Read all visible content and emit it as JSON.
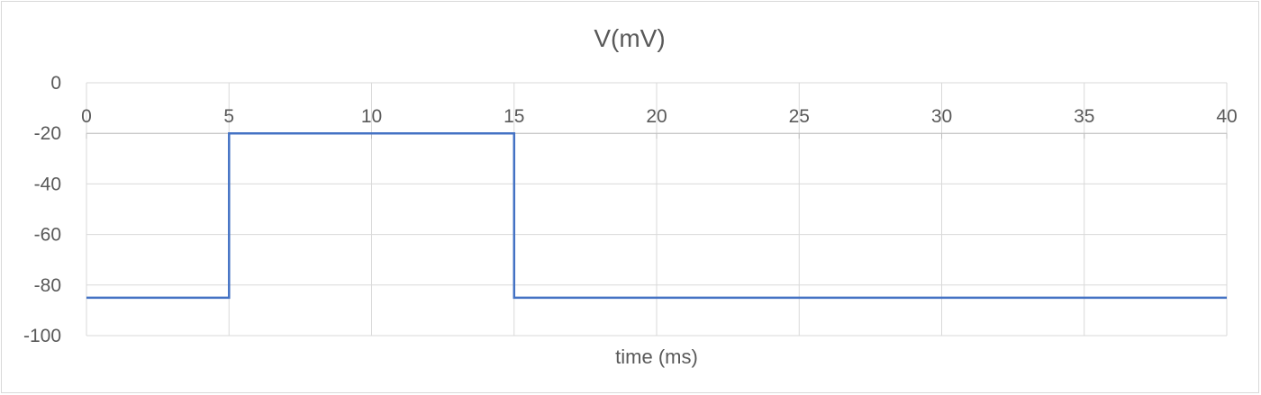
{
  "chart_data": {
    "type": "line",
    "title": "V(mV)",
    "xlabel": "time (ms)",
    "ylabel": "",
    "xlim": [
      0,
      40
    ],
    "ylim": [
      -100,
      0
    ],
    "x_ticks": [
      0,
      5,
      10,
      15,
      20,
      25,
      30,
      35,
      40
    ],
    "y_ticks": [
      0,
      -20,
      -40,
      -60,
      -80,
      -100
    ],
    "x_axis_crosses_at_y": -20,
    "grid": true,
    "legend": "none",
    "series": [
      {
        "color": "#4472c4",
        "x": [
          0,
          5,
          5,
          15,
          15,
          40
        ],
        "y": [
          -85,
          -85,
          -20,
          -20,
          -85,
          -85
        ]
      }
    ]
  }
}
